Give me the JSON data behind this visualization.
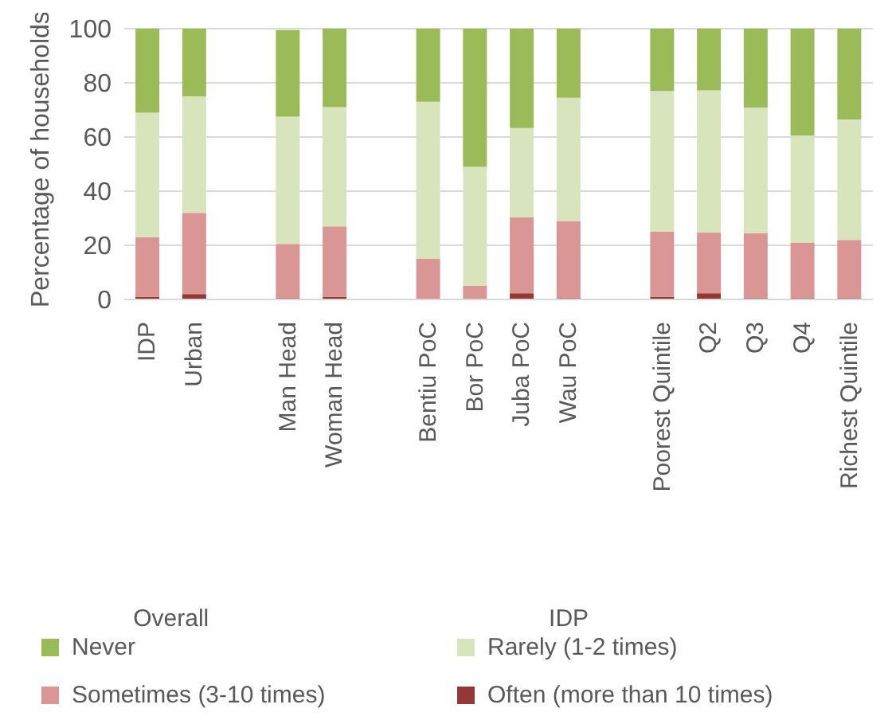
{
  "chart_data": {
    "type": "bar",
    "stacked": true,
    "ylabel": "Percentage of households",
    "categories": [
      "IDP",
      "Urban",
      null,
      "Man Head",
      "Woman Head",
      null,
      "Bentiu PoC",
      "Bor PoC",
      "Juba PoC",
      "Wau PoC",
      null,
      "Poorest Quintile",
      "Q2",
      "Q3",
      "Q4",
      "Richest Quintile"
    ],
    "series": [
      {
        "name": "Often (more than 10 times)",
        "color": "#953735",
        "values": [
          1,
          2,
          null,
          0.5,
          1,
          null,
          0,
          0,
          2.3,
          0.5,
          null,
          1,
          2.3,
          0.5,
          0.5,
          0.5
        ]
      },
      {
        "name": "Sometimes (3-10 times)",
        "color": "#da9694",
        "values": [
          22,
          30,
          null,
          20,
          26,
          null,
          15,
          5,
          28,
          28.5,
          null,
          24,
          22.5,
          24,
          20.5,
          21.5
        ]
      },
      {
        "name": "Rarely (1-2 times)",
        "color": "#d7e4bc",
        "values": [
          46,
          43,
          null,
          47,
          44,
          null,
          58,
          44,
          33,
          45.5,
          null,
          52,
          52.4,
          46.3,
          39.5,
          44.5
        ]
      },
      {
        "name": "Never",
        "color": "#9bbb59",
        "values": [
          31,
          25,
          null,
          32,
          29,
          null,
          27,
          51,
          37,
          25.5,
          null,
          23,
          22.8,
          29.2,
          39.5,
          33.5
        ]
      }
    ],
    "ylim": [
      0,
      100
    ],
    "yticks": [
      0,
      20,
      40,
      60,
      80,
      100
    ],
    "grid": "y",
    "legend": "bottom",
    "annotations": [
      "Overall",
      "IDP"
    ]
  }
}
